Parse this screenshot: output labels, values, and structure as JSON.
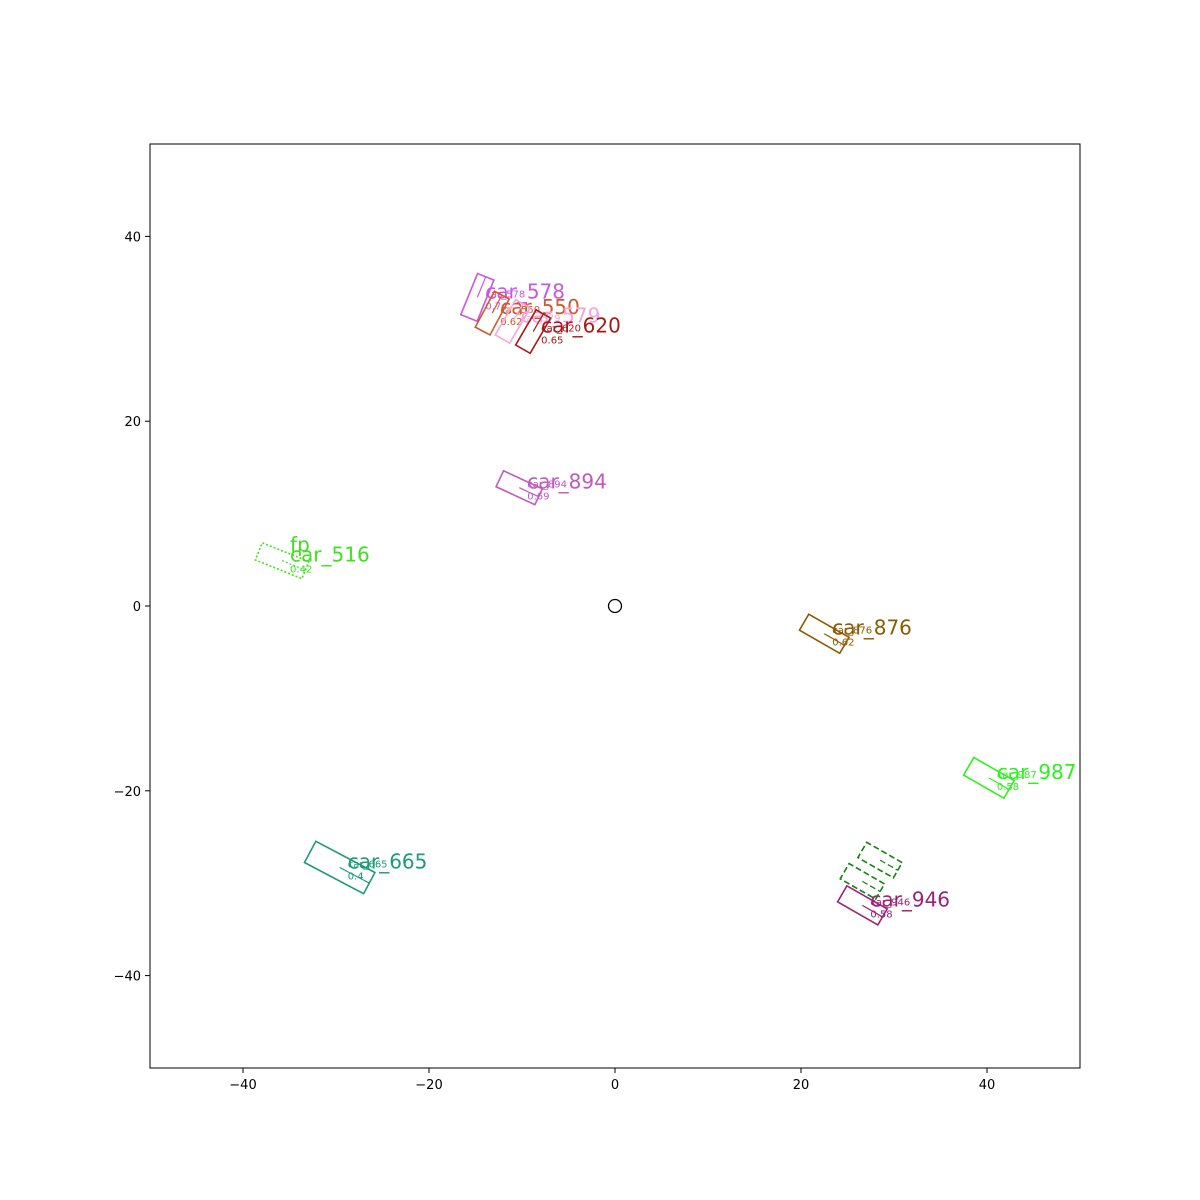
{
  "chart_data": {
    "type": "scatter",
    "title": "",
    "xlabel": "",
    "ylabel": "",
    "xlim": [
      -50,
      50
    ],
    "ylim": [
      -50,
      50
    ],
    "xticks": [
      -40,
      -20,
      0,
      20,
      40
    ],
    "yticks": [
      -40,
      -20,
      0,
      20,
      40
    ],
    "grid": false,
    "ego": {
      "x": 0,
      "y": 0,
      "marker": "circle"
    },
    "boxes": [
      {
        "label": "car_578",
        "sub": "car_578",
        "score": "0.74",
        "x": -14.8,
        "y": 33.4,
        "length": 4.8,
        "width": 1.9,
        "yaw": 68,
        "color": "#c858e0",
        "style": "solid"
      },
      {
        "label": "car_550",
        "sub": "car_550",
        "score": "0.62",
        "x": -13.2,
        "y": 31.7,
        "length": 4.4,
        "width": 1.8,
        "yaw": 62,
        "color": "#cc5a2a",
        "style": "solid"
      },
      {
        "label": "car_579",
        "sub": "car_579",
        "score": "",
        "x": -11.0,
        "y": 30.8,
        "length": 4.4,
        "width": 1.8,
        "yaw": 60,
        "color": "#f2a6e0",
        "style": "solid"
      },
      {
        "label": "car_620",
        "sub": "car_620",
        "score": "0.65",
        "x": -8.8,
        "y": 29.7,
        "length": 4.4,
        "width": 1.8,
        "yaw": 60,
        "color": "#a81818",
        "style": "solid"
      },
      {
        "label": "car_894",
        "sub": "car_894",
        "score": "0.69",
        "x": -10.3,
        "y": 12.8,
        "length": 4.6,
        "width": 1.9,
        "yaw": -25,
        "color": "#c058c0",
        "style": "solid"
      },
      {
        "label": "car_516",
        "sub": "fp",
        "score": "0.42",
        "x": -35.8,
        "y": 4.9,
        "length": 5.4,
        "width": 2.0,
        "yaw": -22,
        "color": "#40e020",
        "style": "dotted"
      },
      {
        "label": "car_876",
        "sub": "car_876",
        "score": "0.62",
        "x": 22.5,
        "y": -3.0,
        "length": 5.0,
        "width": 2.0,
        "yaw": -30,
        "color": "#8a5a00",
        "style": "solid"
      },
      {
        "label": "car_987",
        "sub": "car_987",
        "score": "0.58",
        "x": 40.2,
        "y": -18.6,
        "length": 5.0,
        "width": 2.2,
        "yaw": -30,
        "color": "#30f020",
        "style": "solid"
      },
      {
        "label": "car_665",
        "sub": "car_665",
        "score": "0.4",
        "x": -29.6,
        "y": -28.3,
        "length": 7.2,
        "width": 2.6,
        "yaw": -28,
        "color": "#1e9a78",
        "style": "solid"
      },
      {
        "label": "car_946",
        "sub": "car_946",
        "score": "0.58",
        "x": 26.6,
        "y": -32.4,
        "length": 5.0,
        "width": 2.0,
        "yaw": -30,
        "color": "#9a2278",
        "style": "solid"
      },
      {
        "label": "",
        "sub": "",
        "score": "",
        "x": 28.5,
        "y": -27.5,
        "length": 4.4,
        "width": 1.9,
        "yaw": -30,
        "color": "#12820e",
        "style": "dashed"
      },
      {
        "label": "",
        "sub": "",
        "score": "",
        "x": 26.6,
        "y": -29.8,
        "length": 4.4,
        "width": 1.9,
        "yaw": -30,
        "color": "#12820e",
        "style": "dashed"
      }
    ]
  }
}
